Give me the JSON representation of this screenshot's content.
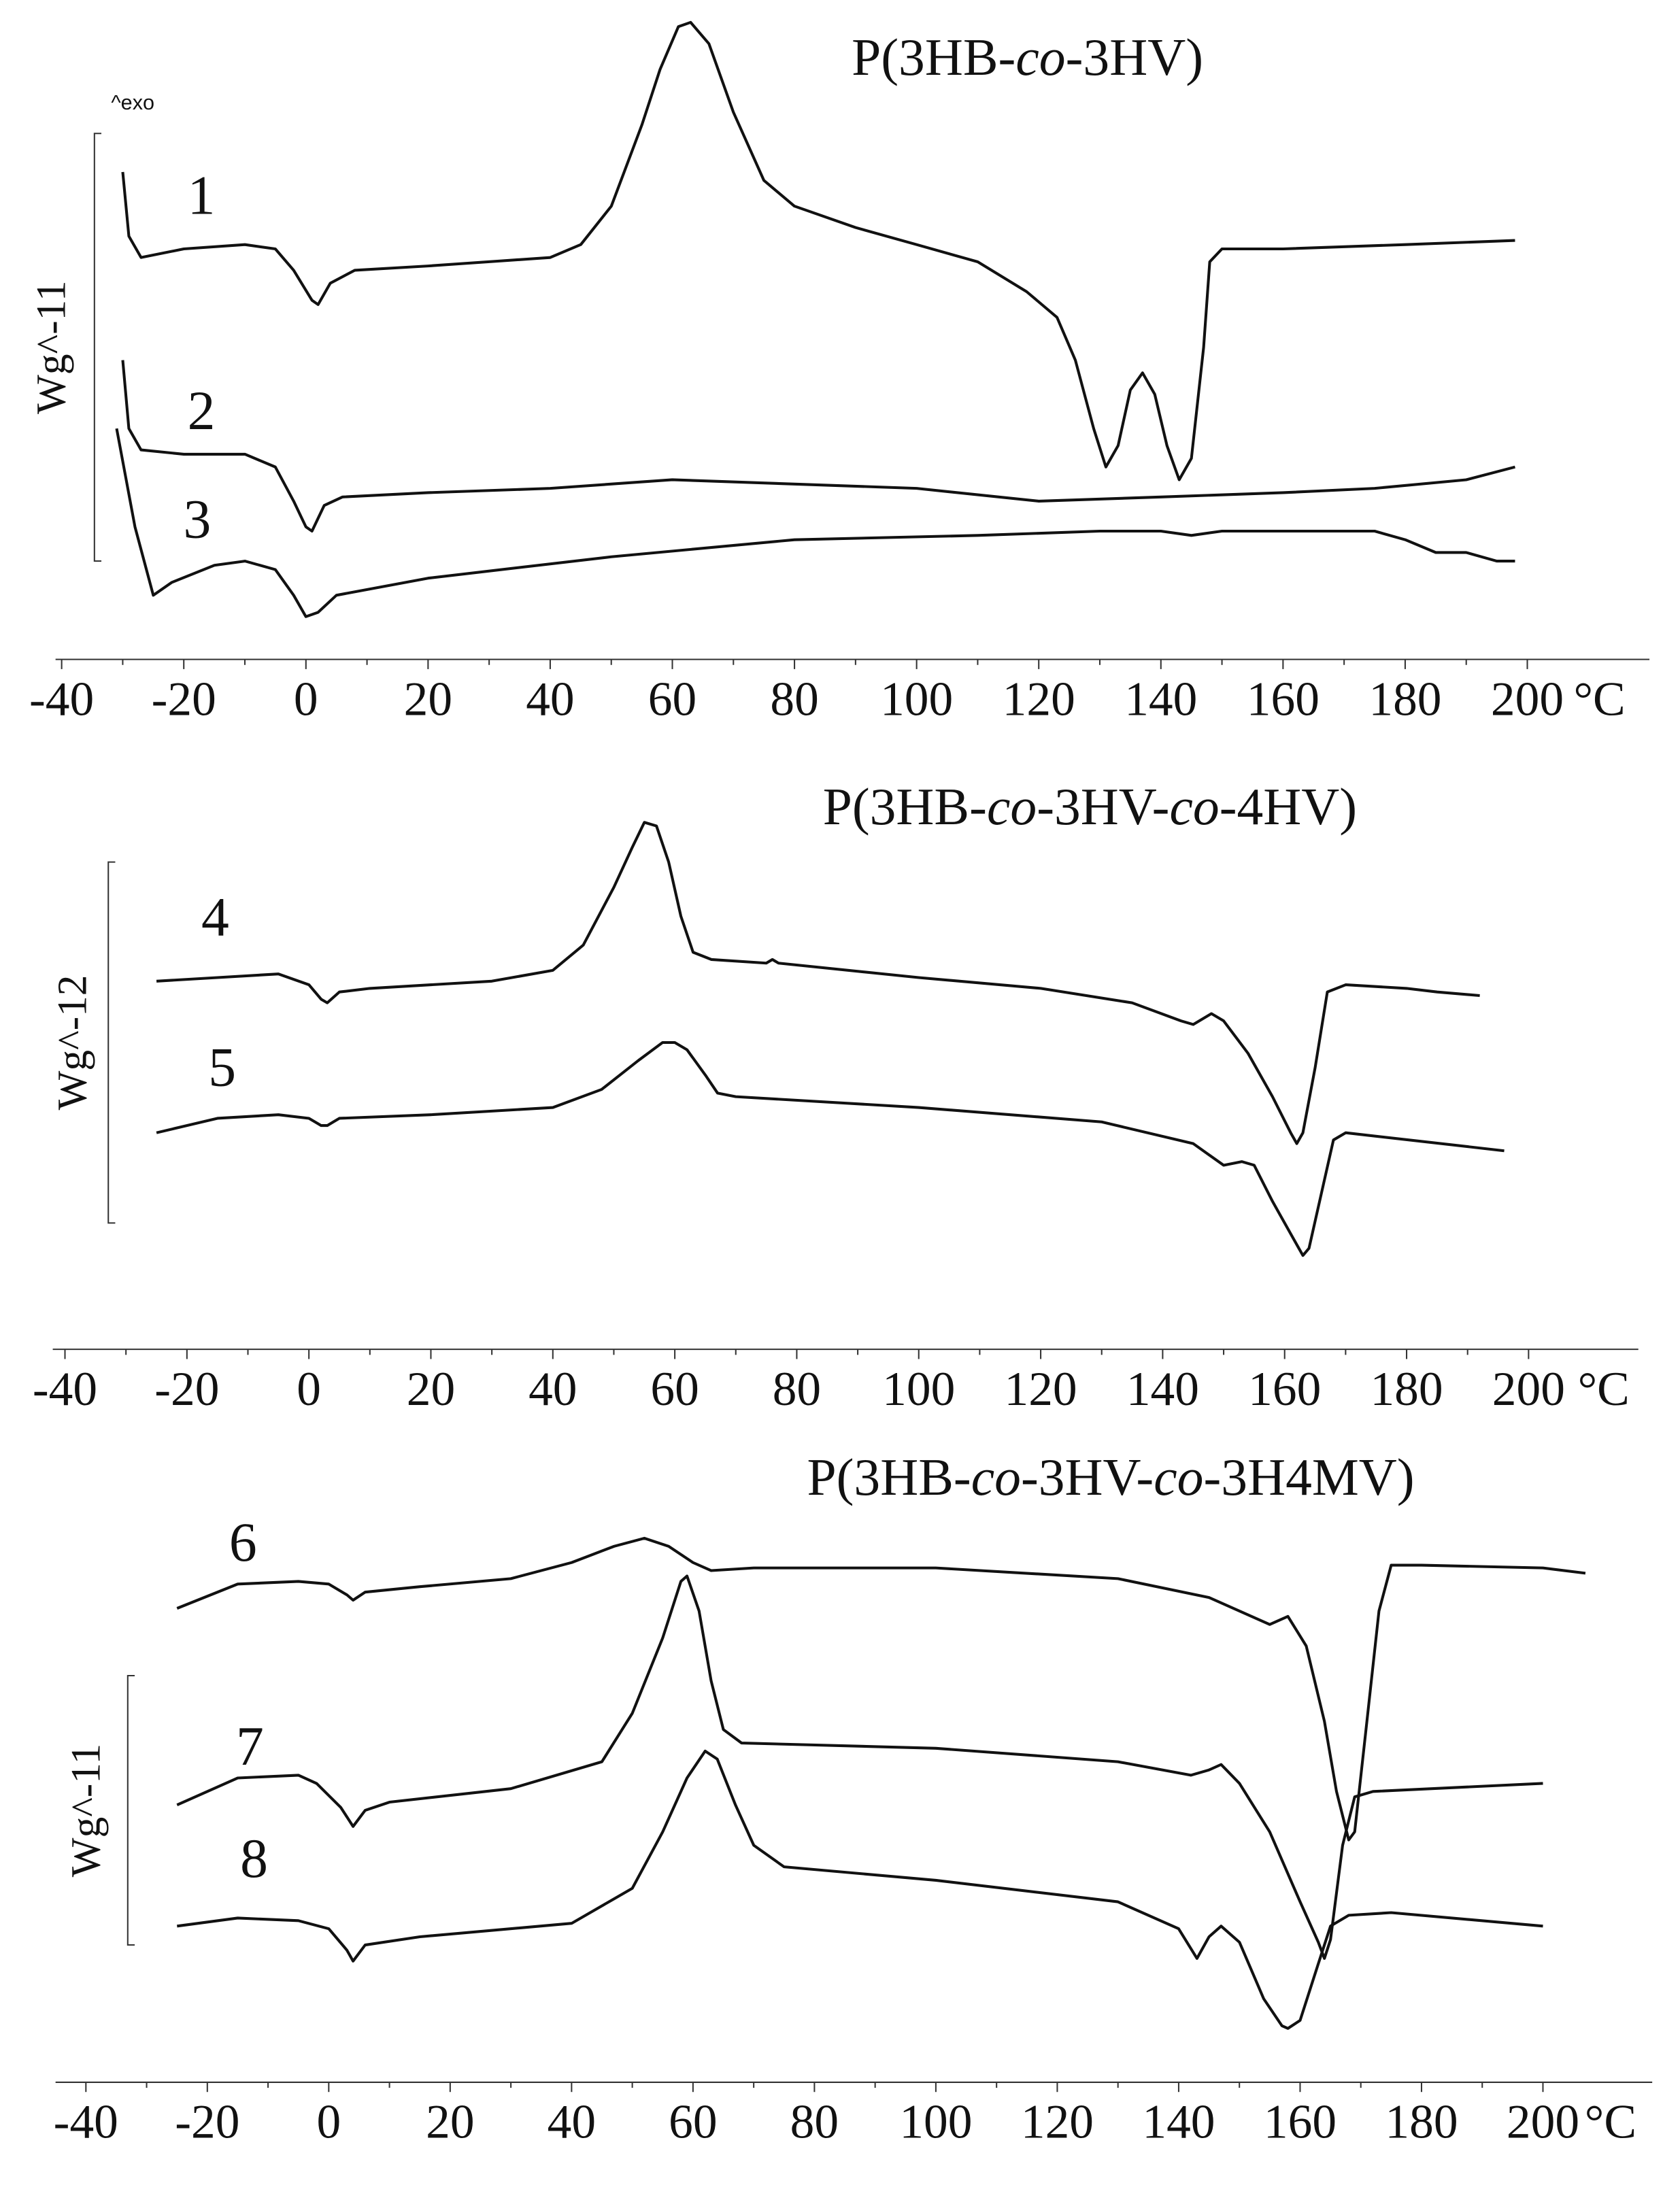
{
  "chart_data": [
    {
      "type": "line",
      "title": [
        "P(3HB-",
        "co",
        "-3HV)"
      ],
      "exo_label": "^exo",
      "scale_bar_label": "Wg^-11",
      "scale_bar": [
        0.23,
        1.23
      ],
      "x_unit": "°C",
      "xlim": [
        -41,
        220
      ],
      "xticks": [
        -40,
        -20,
        0,
        20,
        40,
        60,
        80,
        100,
        120,
        140,
        160,
        180,
        200
      ],
      "ylim": [
        0,
        1.5
      ],
      "series": [
        {
          "name": "1",
          "color": "#111111",
          "x": [
            -30,
            -29,
            -27,
            -20,
            -10,
            -5,
            -2,
            1,
            2,
            4,
            8,
            20,
            40,
            45,
            50,
            55,
            58,
            61,
            63,
            66,
            70,
            75,
            80,
            90,
            100,
            110,
            118,
            123,
            126,
            129,
            131,
            133,
            135,
            137,
            139,
            141,
            143,
            145,
            147,
            148,
            150,
            160,
            180,
            198
          ],
          "values": [
            1.14,
            0.99,
            0.94,
            0.96,
            0.97,
            0.96,
            0.91,
            0.84,
            0.83,
            0.88,
            0.91,
            0.92,
            0.94,
            0.97,
            1.06,
            1.25,
            1.38,
            1.48,
            1.49,
            1.44,
            1.28,
            1.12,
            1.06,
            1.01,
            0.97,
            0.93,
            0.86,
            0.8,
            0.7,
            0.54,
            0.45,
            0.5,
            0.63,
            0.67,
            0.62,
            0.5,
            0.42,
            0.47,
            0.73,
            0.93,
            0.96,
            0.96,
            0.97,
            0.98
          ]
        },
        {
          "name": "2",
          "color": "#111111",
          "x": [
            -30,
            -29,
            -27,
            -20,
            -10,
            -5,
            -2,
            0,
            1,
            3,
            6,
            20,
            40,
            60,
            80,
            100,
            120,
            140,
            160,
            175,
            190,
            198
          ],
          "values": [
            0.7,
            0.54,
            0.49,
            0.48,
            0.48,
            0.45,
            0.37,
            0.31,
            0.3,
            0.36,
            0.38,
            0.39,
            0.4,
            0.42,
            0.41,
            0.4,
            0.37,
            0.38,
            0.39,
            0.4,
            0.42,
            0.45
          ]
        },
        {
          "name": "3",
          "color": "#111111",
          "x": [
            -31,
            -28,
            -25,
            -22,
            -15,
            -10,
            -5,
            -2,
            0,
            2,
            5,
            20,
            50,
            80,
            110,
            130,
            140,
            145,
            150,
            165,
            175,
            180,
            185,
            190,
            195,
            198
          ],
          "values": [
            0.54,
            0.31,
            0.15,
            0.18,
            0.22,
            0.23,
            0.21,
            0.15,
            0.1,
            0.11,
            0.15,
            0.19,
            0.24,
            0.28,
            0.29,
            0.3,
            0.3,
            0.29,
            0.3,
            0.3,
            0.3,
            0.28,
            0.25,
            0.25,
            0.23,
            0.23
          ]
        }
      ]
    },
    {
      "type": "line",
      "title": [
        "P(3HB-",
        "co",
        "-3HV-",
        "co",
        "-4HV)"
      ],
      "scale_bar_label": "Wg^-12",
      "scale_bar": [
        0.35,
        1.35
      ],
      "x_unit": "°C",
      "xlim": [
        -42,
        218
      ],
      "xticks": [
        -40,
        -20,
        0,
        20,
        40,
        60,
        80,
        100,
        120,
        140,
        160,
        180,
        200
      ],
      "ylim": [
        0,
        1.58
      ],
      "series": [
        {
          "name": "4",
          "color": "#111111",
          "x": [
            -25,
            -15,
            -5,
            0,
            2,
            3,
            5,
            10,
            30,
            40,
            45,
            50,
            53,
            55,
            57,
            59,
            61,
            63,
            66,
            75,
            76,
            77,
            100,
            120,
            135,
            143,
            145,
            148,
            150,
            154,
            158,
            161,
            162,
            163,
            165,
            167,
            170,
            180,
            185,
            192
          ],
          "values": [
            1.02,
            1.03,
            1.04,
            1.01,
            0.97,
            0.96,
            0.99,
            1.0,
            1.02,
            1.05,
            1.12,
            1.28,
            1.39,
            1.46,
            1.45,
            1.35,
            1.2,
            1.1,
            1.08,
            1.07,
            1.08,
            1.07,
            1.03,
            1.0,
            0.96,
            0.91,
            0.9,
            0.93,
            0.91,
            0.82,
            0.7,
            0.6,
            0.57,
            0.6,
            0.78,
            0.99,
            1.01,
            1.0,
            0.99,
            0.98
          ]
        },
        {
          "name": "5",
          "color": "#111111",
          "x": [
            -25,
            -15,
            -5,
            0,
            2,
            3,
            5,
            20,
            40,
            48,
            54,
            58,
            60,
            62,
            65,
            67,
            70,
            100,
            130,
            145,
            150,
            153,
            155,
            158,
            161,
            163,
            164,
            166,
            168,
            170,
            196
          ],
          "values": [
            0.6,
            0.64,
            0.65,
            0.64,
            0.62,
            0.62,
            0.64,
            0.65,
            0.67,
            0.72,
            0.8,
            0.85,
            0.85,
            0.83,
            0.76,
            0.71,
            0.7,
            0.67,
            0.63,
            0.57,
            0.51,
            0.52,
            0.51,
            0.41,
            0.32,
            0.26,
            0.28,
            0.43,
            0.58,
            0.6,
            0.55
          ]
        }
      ]
    },
    {
      "type": "line",
      "title": [
        "P(3HB-",
        "co",
        "-3HV-",
        "co",
        "-3H4MV)"
      ],
      "scale_bar_label": "Wg^-11",
      "scale_bar": [
        0.51,
        1.51
      ],
      "x_unit": "°C",
      "xlim": [
        -45,
        218
      ],
      "xticks": [
        -40,
        -20,
        0,
        20,
        40,
        60,
        80,
        100,
        120,
        140,
        160,
        180,
        200
      ],
      "ylim": [
        0,
        2.22
      ],
      "series": [
        {
          "name": "6",
          "color": "#111111",
          "x": [
            -25,
            -15,
            -5,
            0,
            3,
            4,
            6,
            15,
            30,
            40,
            47,
            52,
            56,
            60,
            63,
            70,
            100,
            130,
            145,
            152,
            155,
            158,
            161,
            164,
            166,
            168,
            169,
            171,
            173,
            175,
            180,
            200,
            207
          ],
          "values": [
            1.76,
            1.85,
            1.86,
            1.85,
            1.81,
            1.79,
            1.82,
            1.84,
            1.87,
            1.93,
            1.99,
            2.02,
            1.99,
            1.93,
            1.9,
            1.91,
            1.91,
            1.87,
            1.8,
            1.73,
            1.7,
            1.73,
            1.62,
            1.34,
            1.08,
            0.9,
            0.93,
            1.34,
            1.75,
            1.92,
            1.92,
            1.91,
            1.89
          ]
        },
        {
          "name": "7",
          "color": "#111111",
          "x": [
            -25,
            -15,
            -5,
            -2,
            2,
            4,
            6,
            10,
            30,
            45,
            50,
            55,
            58,
            59,
            61,
            63,
            65,
            68,
            100,
            130,
            142,
            145,
            147,
            150,
            155,
            160,
            163,
            164,
            165,
            167,
            169,
            172,
            200
          ],
          "values": [
            1.03,
            1.13,
            1.14,
            1.11,
            1.02,
            0.95,
            1.01,
            1.04,
            1.09,
            1.19,
            1.37,
            1.65,
            1.86,
            1.88,
            1.75,
            1.49,
            1.31,
            1.26,
            1.24,
            1.19,
            1.14,
            1.16,
            1.18,
            1.11,
            0.93,
            0.67,
            0.52,
            0.46,
            0.53,
            0.88,
            1.06,
            1.08,
            1.11
          ]
        },
        {
          "name": "8",
          "color": "#111111",
          "x": [
            -25,
            -15,
            -5,
            0,
            3,
            4,
            6,
            15,
            40,
            50,
            55,
            59,
            62,
            64,
            67,
            70,
            75,
            100,
            130,
            140,
            143,
            145,
            147,
            150,
            154,
            157,
            158,
            160,
            163,
            165,
            168,
            175,
            200
          ],
          "values": [
            0.58,
            0.61,
            0.6,
            0.57,
            0.49,
            0.45,
            0.51,
            0.54,
            0.59,
            0.72,
            0.93,
            1.13,
            1.23,
            1.2,
            1.03,
            0.88,
            0.8,
            0.75,
            0.67,
            0.57,
            0.46,
            0.54,
            0.58,
            0.52,
            0.31,
            0.21,
            0.2,
            0.23,
            0.44,
            0.58,
            0.62,
            0.63,
            0.58
          ]
        }
      ]
    }
  ]
}
